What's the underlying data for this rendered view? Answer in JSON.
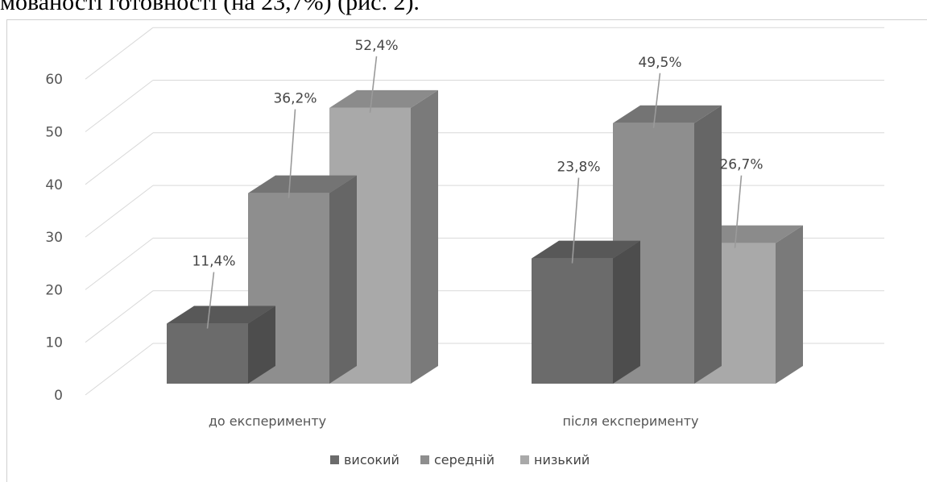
{
  "page_text": {
    "top_line": "мованості готовності (на 23,7%) (рис. 2)."
  },
  "chart_data": {
    "type": "bar",
    "categories": [
      "до експерименту",
      "після експерименту"
    ],
    "series": [
      {
        "name": "високий",
        "values": [
          11.4,
          23.8
        ],
        "labels": [
          "11,4%",
          "23,8%"
        ],
        "color": "#6b6b6b"
      },
      {
        "name": "середній",
        "values": [
          36.2,
          49.5
        ],
        "labels": [
          "36,2%",
          "49,5%"
        ],
        "color": "#8e8e8e"
      },
      {
        "name": "низький",
        "values": [
          52.4,
          26.7
        ],
        "labels": [
          "52,4%",
          "26,7%"
        ],
        "color": "#a9a9a9"
      }
    ],
    "yticks": [
      0,
      10,
      20,
      30,
      40,
      50,
      60
    ],
    "ylim": [
      0,
      60
    ],
    "grid": true,
    "legend": "bottom",
    "title": "",
    "xlabel": "",
    "ylabel": ""
  }
}
